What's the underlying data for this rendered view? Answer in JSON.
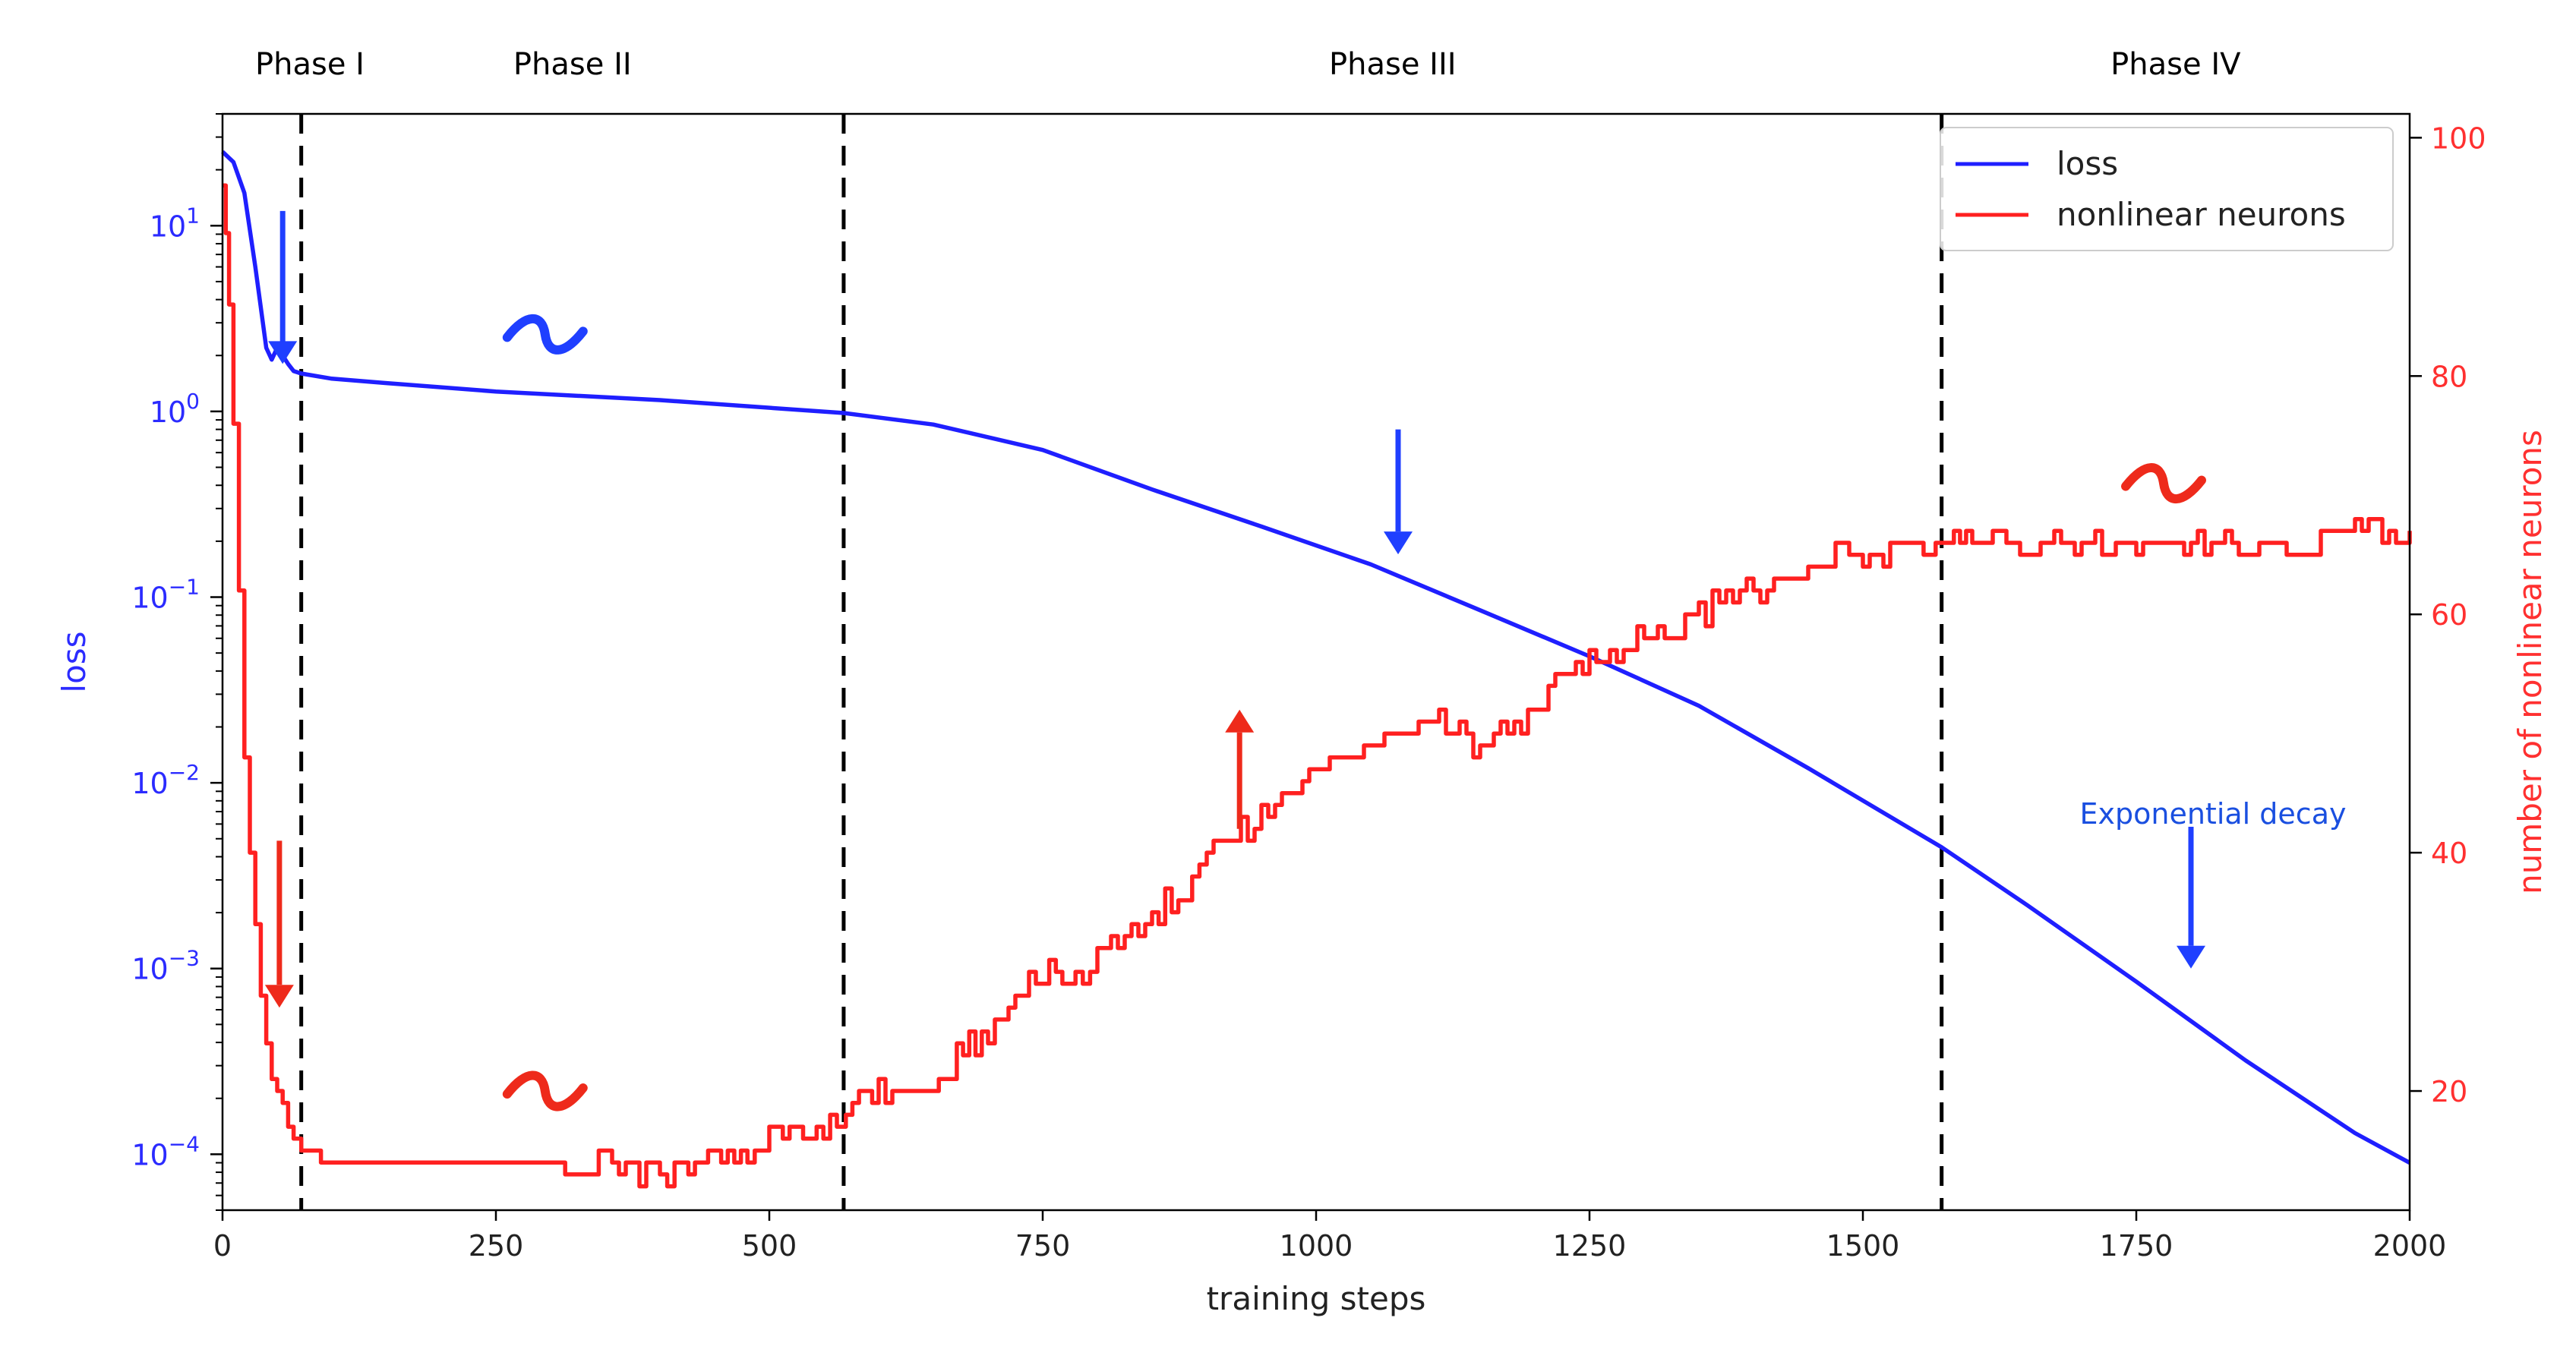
{
  "chart_data": {
    "type": "line",
    "xlabel": "training steps",
    "ylabel_left": "loss",
    "ylabel_right": "number of nonlinear neurons",
    "xlim": [
      0,
      2000
    ],
    "ylim_left": [
      5e-05,
      40
    ],
    "ylim_right": [
      10,
      102
    ],
    "y_left_scale": "log",
    "x_ticks": [
      "0",
      "250",
      "500",
      "750",
      "1000",
      "1250",
      "1500",
      "1750",
      "2000"
    ],
    "y_left_ticks": [
      {
        "base": "10",
        "exp": "1"
      },
      {
        "base": "10",
        "exp": "0"
      },
      {
        "base": "10",
        "exp": "−1"
      },
      {
        "base": "10",
        "exp": "−2"
      },
      {
        "base": "10",
        "exp": "−3"
      },
      {
        "base": "10",
        "exp": "−4"
      }
    ],
    "y_right_ticks": [
      "20",
      "40",
      "60",
      "80",
      "100"
    ],
    "phases": [
      "Phase I",
      "Phase II",
      "Phase III",
      "Phase IV"
    ],
    "phase_boundaries": [
      72,
      568,
      1572
    ],
    "legend_position": "top-right",
    "annotation_text": "Exponential decay",
    "colors": {
      "loss": "#1f1fff",
      "neurons": "#ff2020",
      "annotation_text": "#1a4fe0"
    },
    "series": [
      {
        "name": "loss",
        "axis": "left",
        "x": [
          0,
          10,
          20,
          30,
          40,
          45,
          50,
          55,
          60,
          65,
          72,
          100,
          150,
          250,
          400,
          568,
          650,
          750,
          850,
          950,
          1050,
          1150,
          1250,
          1350,
          1450,
          1572,
          1650,
          1750,
          1850,
          1950,
          2000
        ],
        "y": [
          25,
          22,
          15,
          6,
          2.2,
          1.9,
          2.2,
          2.0,
          1.8,
          1.65,
          1.6,
          1.5,
          1.42,
          1.28,
          1.15,
          0.98,
          0.85,
          0.62,
          0.38,
          0.24,
          0.15,
          0.085,
          0.048,
          0.026,
          0.012,
          0.0045,
          0.0022,
          0.00085,
          0.00032,
          0.00013,
          9e-05
        ]
      },
      {
        "name": "nonlinear neurons",
        "axis": "right",
        "x": [
          0,
          3,
          6,
          10,
          15,
          20,
          25,
          30,
          35,
          40,
          45,
          50,
          55,
          60,
          65,
          72,
          80,
          90,
          100,
          150,
          200,
          250,
          300,
          320,
          350,
          400,
          420,
          450,
          480,
          500,
          568,
          570,
          600,
          650,
          660,
          700,
          750,
          780,
          800,
          850,
          880,
          900,
          950,
          1000,
          1050,
          1100,
          1150,
          1200,
          1250,
          1300,
          1350,
          1400,
          1450,
          1500,
          1550,
          1572,
          1600,
          1650,
          1700,
          1750,
          1800,
          1850,
          1900,
          1950,
          2000
        ],
        "y": [
          96,
          92,
          86,
          76,
          62,
          48,
          40,
          34,
          28,
          24,
          21,
          20,
          19,
          17,
          16,
          15,
          15,
          14,
          14,
          14,
          14,
          14,
          14,
          13,
          14,
          13,
          14,
          15,
          15,
          16,
          17,
          19,
          20,
          20,
          22,
          25,
          30,
          29,
          32,
          35,
          37,
          40,
          43,
          47,
          49,
          51,
          49,
          52,
          56,
          58,
          60,
          62,
          64,
          65,
          66,
          66,
          67,
          66,
          66,
          66,
          66,
          66,
          66,
          67,
          67
        ]
      }
    ],
    "markers": [
      {
        "kind": "arrow-down",
        "color": "blue",
        "x": 55,
        "axis": "left",
        "y_from": 12,
        "y_to": 1.8
      },
      {
        "kind": "arrow-down",
        "color": "red",
        "x": 52,
        "axis": "right",
        "y_from": 41,
        "y_to": 27
      },
      {
        "kind": "tilde",
        "color": "blue",
        "x": 295,
        "axis": "left",
        "y": 2.6
      },
      {
        "kind": "tilde",
        "color": "red",
        "x": 295,
        "axis": "right",
        "y": 20
      },
      {
        "kind": "arrow-down",
        "color": "blue",
        "x": 1075,
        "axis": "left",
        "y_from": 0.8,
        "y_to": 0.17
      },
      {
        "kind": "arrow-up",
        "color": "red",
        "x": 930,
        "axis": "right",
        "y_from": 42,
        "y_to": 52
      },
      {
        "kind": "tilde",
        "color": "red",
        "x": 1775,
        "axis": "right",
        "y": 71
      },
      {
        "kind": "arrow-down",
        "color": "blue",
        "x": 1800,
        "axis": "left",
        "y_from": 0.0058,
        "y_to": 0.001
      }
    ]
  }
}
